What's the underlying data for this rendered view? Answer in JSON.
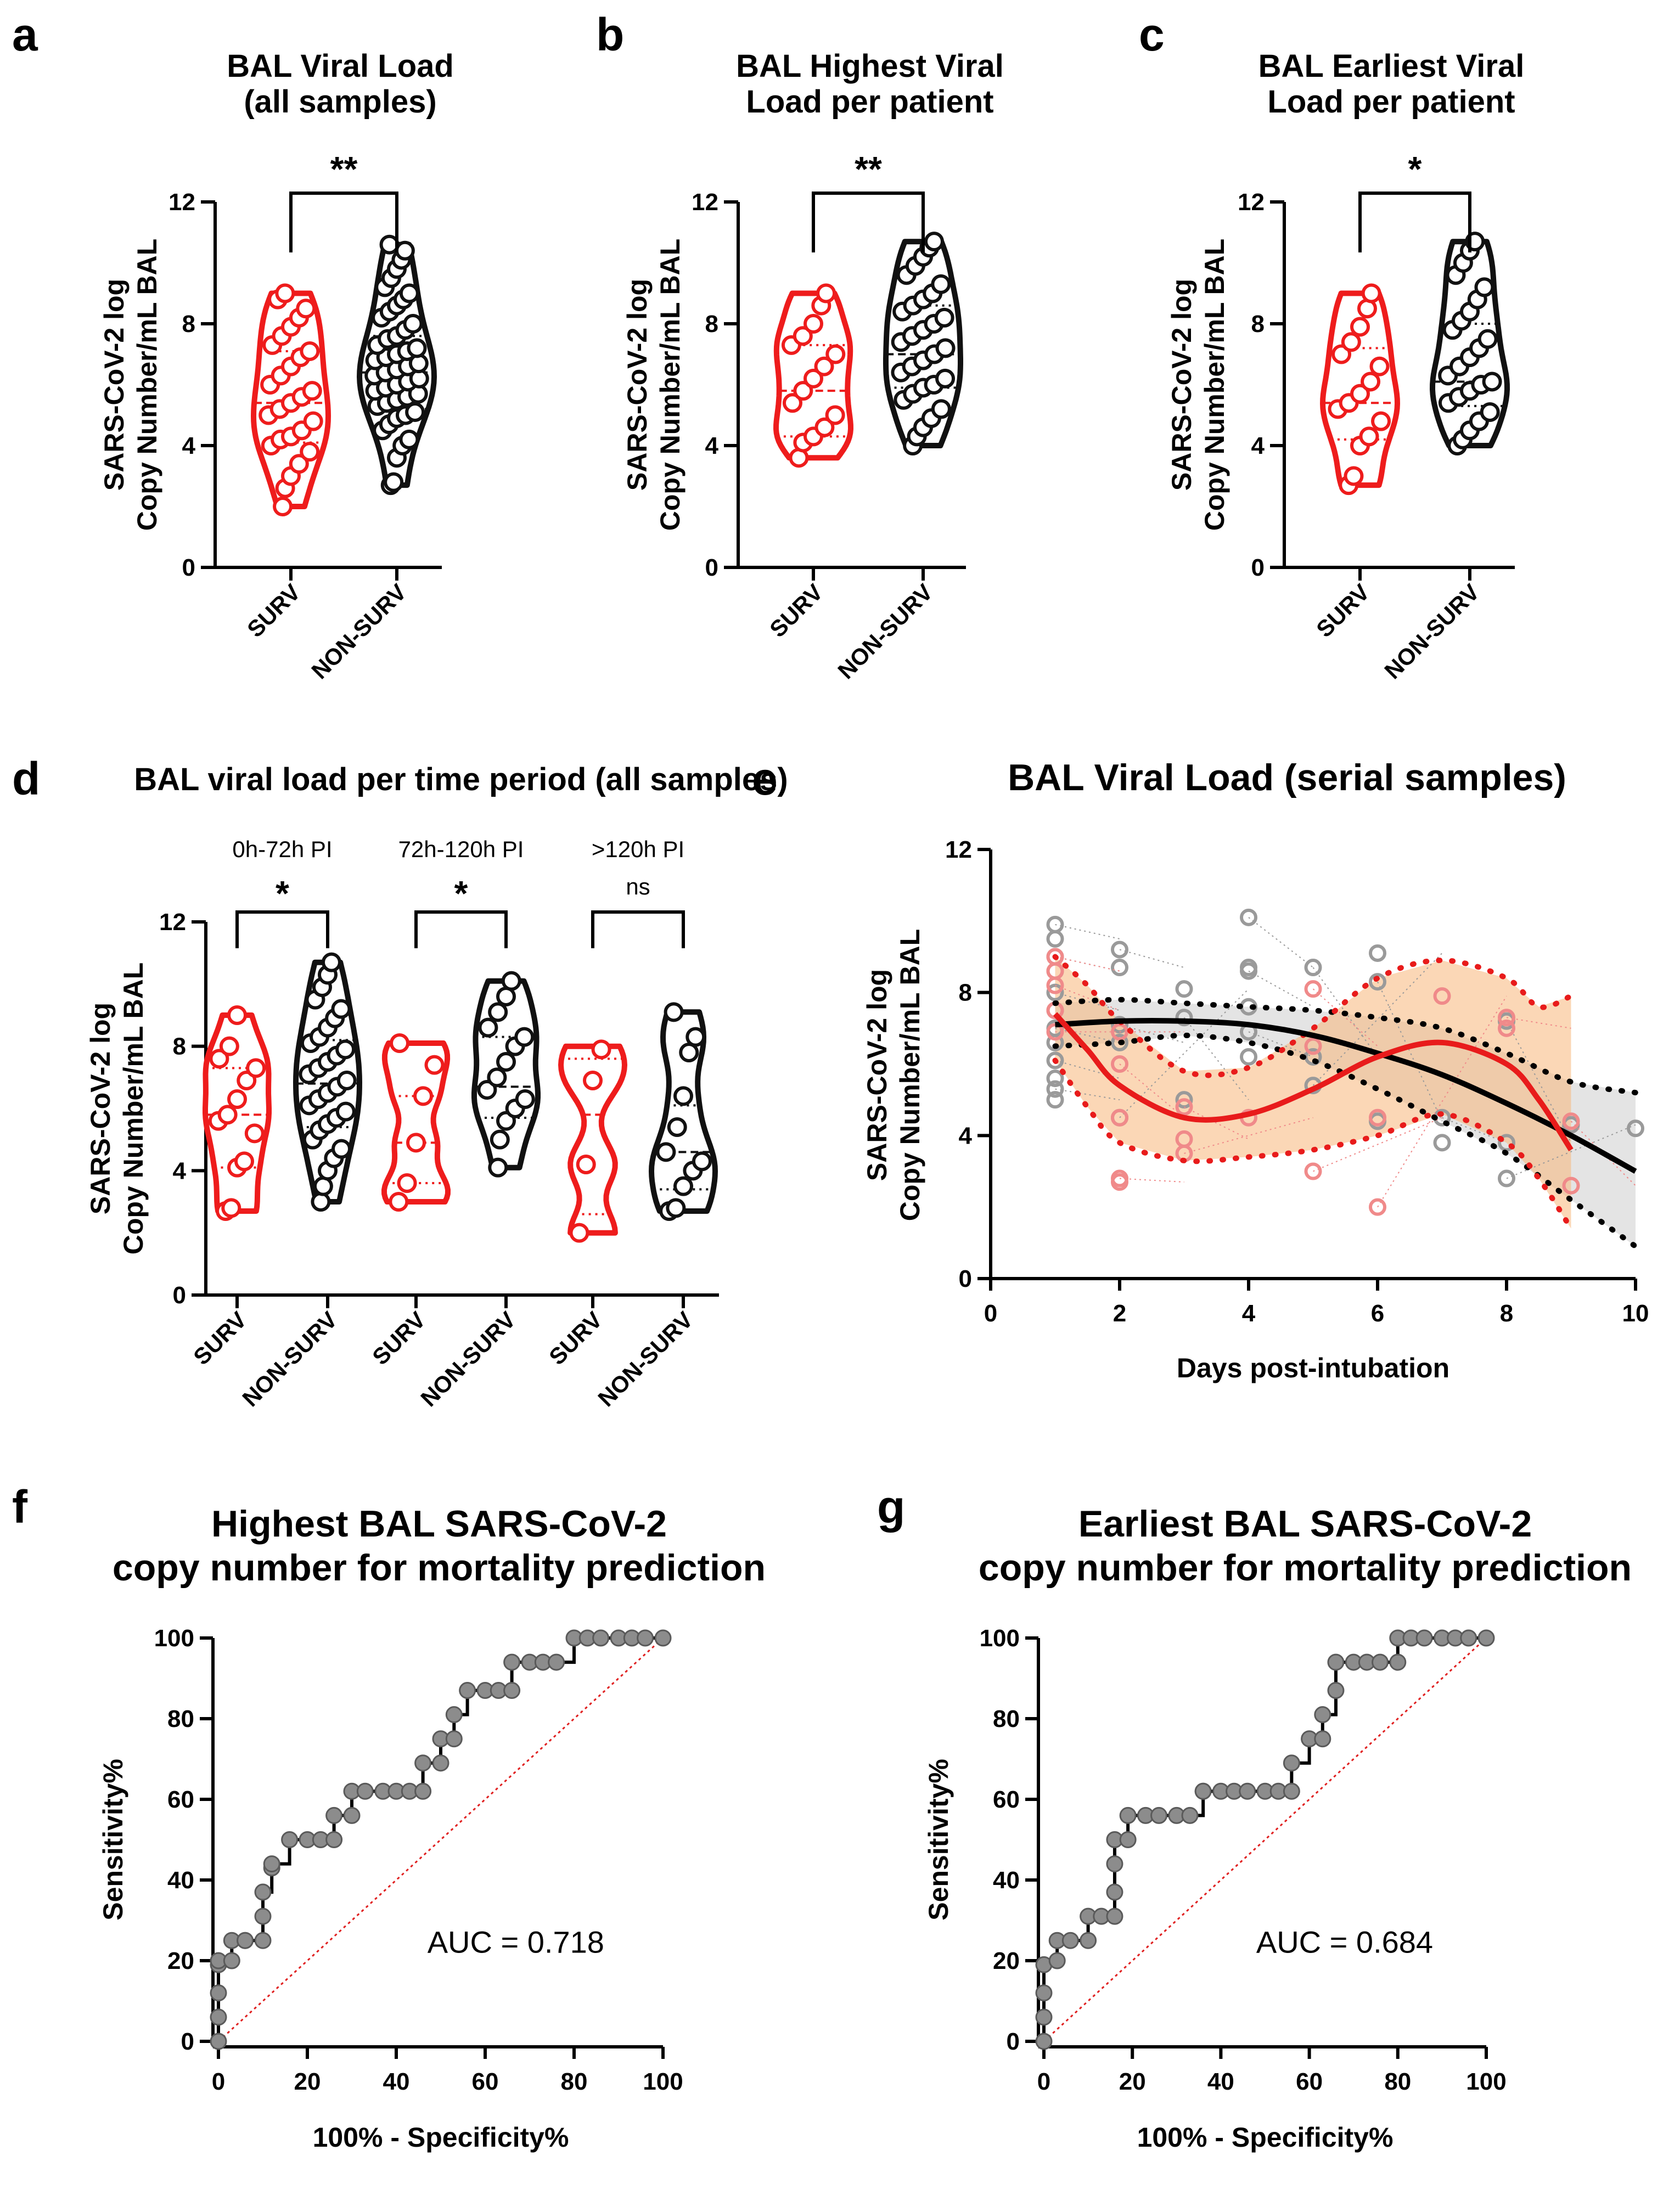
{
  "figure_label": "Violin plots, serial viral load curves and ROC curves of BAL SARS-CoV-2 viral load",
  "chart_data": [
    {
      "id": "a",
      "type": "violin",
      "letter": "a",
      "title_lines": [
        "BAL Viral Load",
        "(all samples)"
      ],
      "ylabel_lines": [
        "SARS-CoV-2 log",
        "Copy Number/mL BAL"
      ],
      "ylim": [
        0,
        12
      ],
      "yticks": [
        "0",
        "4",
        "8",
        "12"
      ],
      "categories": [
        "SURV",
        "NON-SURV"
      ],
      "series": [
        {
          "name": "SURV",
          "color": "#ee1c1c",
          "range": [
            2.0,
            9.0
          ],
          "median": 5.4,
          "q1": 4.1,
          "q3": 7.1,
          "points": [
            2.0,
            2.6,
            3.0,
            3.4,
            3.8,
            4.0,
            4.2,
            4.3,
            4.5,
            4.8,
            5.0,
            5.2,
            5.4,
            5.6,
            5.8,
            6.0,
            6.3,
            6.6,
            6.9,
            7.1,
            7.3,
            7.6,
            7.9,
            8.2,
            8.5,
            8.8,
            9.0
          ]
        },
        {
          "name": "NON-SURV",
          "color": "#111111",
          "range": [
            2.7,
            10.6
          ],
          "median": 6.4,
          "q1": 5.2,
          "q3": 7.6,
          "points": [
            2.7,
            2.8,
            3.6,
            4.0,
            4.2,
            4.5,
            4.7,
            4.9,
            5.0,
            5.1,
            5.3,
            5.4,
            5.5,
            5.6,
            5.7,
            5.8,
            5.9,
            6.0,
            6.1,
            6.2,
            6.3,
            6.4,
            6.5,
            6.6,
            6.7,
            6.8,
            6.9,
            7.0,
            7.1,
            7.2,
            7.3,
            7.5,
            7.6,
            7.8,
            8.0,
            8.2,
            8.4,
            8.6,
            8.8,
            9.0,
            9.2,
            9.5,
            9.8,
            10.1,
            10.4,
            10.6
          ]
        }
      ],
      "comparisons": [
        {
          "from": 0,
          "to": 1,
          "label": "**"
        }
      ]
    },
    {
      "id": "b",
      "type": "violin",
      "letter": "b",
      "title_lines": [
        "BAL Highest Viral",
        "Load per patient"
      ],
      "ylabel_lines": [
        "SARS-CoV-2 log",
        "Copy Number/mL BAL"
      ],
      "ylim": [
        0,
        12
      ],
      "yticks": [
        "0",
        "4",
        "8",
        "12"
      ],
      "categories": [
        "SURV",
        "NON-SURV"
      ],
      "series": [
        {
          "name": "SURV",
          "color": "#ee1c1c",
          "range": [
            3.6,
            9.0
          ],
          "median": 5.8,
          "q1": 4.3,
          "q3": 7.3,
          "points": [
            3.6,
            4.1,
            4.3,
            4.6,
            5.0,
            5.4,
            5.8,
            6.2,
            6.6,
            7.0,
            7.3,
            7.6,
            8.0,
            8.6,
            9.0
          ]
        },
        {
          "name": "NON-SURV",
          "color": "#111111",
          "range": [
            4.0,
            10.7
          ],
          "median": 7.0,
          "q1": 5.9,
          "q3": 8.6,
          "points": [
            4.0,
            4.3,
            4.6,
            4.9,
            5.2,
            5.5,
            5.7,
            5.9,
            6.0,
            6.2,
            6.4,
            6.6,
            6.8,
            7.0,
            7.2,
            7.4,
            7.6,
            7.8,
            8.0,
            8.2,
            8.4,
            8.6,
            8.8,
            9.0,
            9.3,
            9.6,
            9.9,
            10.2,
            10.5,
            10.7
          ]
        }
      ],
      "comparisons": [
        {
          "from": 0,
          "to": 1,
          "label": "**"
        }
      ]
    },
    {
      "id": "c",
      "type": "violin",
      "letter": "c",
      "title_lines": [
        "BAL Earliest Viral",
        "Load per patient"
      ],
      "ylabel_lines": [
        "SARS-CoV-2 log",
        "Copy Number/mL BAL"
      ],
      "ylim": [
        0,
        12
      ],
      "yticks": [
        "0",
        "4",
        "8",
        "12"
      ],
      "categories": [
        "SURV",
        "NON-SURV"
      ],
      "series": [
        {
          "name": "SURV",
          "color": "#ee1c1c",
          "range": [
            2.7,
            9.0
          ],
          "median": 5.4,
          "q1": 4.2,
          "q3": 7.2,
          "points": [
            2.7,
            3.0,
            4.0,
            4.3,
            4.8,
            5.2,
            5.4,
            5.7,
            6.1,
            6.6,
            7.0,
            7.4,
            7.9,
            8.5,
            9.0
          ]
        },
        {
          "name": "NON-SURV",
          "color": "#111111",
          "range": [
            4.0,
            10.7
          ],
          "median": 6.1,
          "q1": 5.3,
          "q3": 8.0,
          "points": [
            4.0,
            4.2,
            4.5,
            4.8,
            5.1,
            5.4,
            5.6,
            5.8,
            6.0,
            6.1,
            6.3,
            6.6,
            6.9,
            7.2,
            7.5,
            7.8,
            8.1,
            8.4,
            8.8,
            9.2,
            9.6,
            10.0,
            10.4,
            10.7
          ]
        }
      ],
      "comparisons": [
        {
          "from": 0,
          "to": 1,
          "label": "*"
        }
      ]
    },
    {
      "id": "d",
      "type": "violin",
      "letter": "d",
      "title_lines": [
        "BAL viral load per time period  (all samples)"
      ],
      "ylabel_lines": [
        "SARS-CoV-2 log",
        "Copy Number/mL BAL"
      ],
      "ylim": [
        0,
        12
      ],
      "yticks": [
        "0",
        "4",
        "8",
        "12"
      ],
      "categories": [
        "SURV",
        "NON-SURV",
        "SURV",
        "NON-SURV",
        "SURV",
        "NON-SURV"
      ],
      "period_labels": [
        "0h-72h PI",
        "72h-120h PI",
        ">120h PI"
      ],
      "series": [
        {
          "name": "SURV 0h-72h",
          "color": "#ee1c1c",
          "range": [
            2.7,
            9.0
          ],
          "median": 5.8,
          "q1": 4.1,
          "q3": 7.3,
          "points": [
            2.7,
            2.8,
            4.1,
            4.3,
            5.2,
            5.6,
            5.8,
            6.3,
            6.9,
            7.3,
            7.6,
            8.0,
            9.0
          ]
        },
        {
          "name": "NON-SURV 0h-72h",
          "color": "#111111",
          "range": [
            3.0,
            10.7
          ],
          "median": 6.8,
          "q1": 5.4,
          "q3": 8.2,
          "points": [
            3.0,
            3.5,
            4.0,
            4.4,
            4.7,
            5.0,
            5.3,
            5.5,
            5.7,
            5.9,
            6.1,
            6.3,
            6.5,
            6.7,
            6.9,
            7.1,
            7.3,
            7.5,
            7.7,
            7.9,
            8.1,
            8.3,
            8.6,
            8.9,
            9.2,
            9.5,
            9.9,
            10.3,
            10.7
          ]
        },
        {
          "name": "SURV 72h-120h",
          "color": "#ee1c1c",
          "range": [
            3.0,
            8.1
          ],
          "median": 4.9,
          "q1": 3.6,
          "q3": 6.4,
          "points": [
            3.0,
            3.6,
            4.9,
            6.4,
            7.4,
            8.1
          ]
        },
        {
          "name": "NON-SURV 72h-120h",
          "color": "#111111",
          "range": [
            4.1,
            10.1
          ],
          "median": 6.7,
          "q1": 5.7,
          "q3": 8.3,
          "points": [
            4.1,
            5.0,
            5.6,
            6.0,
            6.3,
            6.6,
            7.0,
            7.5,
            8.0,
            8.3,
            8.6,
            9.1,
            9.6,
            10.1
          ]
        },
        {
          "name": "SURV >120h",
          "color": "#ee1c1c",
          "range": [
            2.0,
            8.0
          ],
          "median": 5.8,
          "q1": 2.6,
          "q3": 7.6,
          "points": [
            2.0,
            4.2,
            6.9,
            7.9
          ]
        },
        {
          "name": "NON-SURV >120h",
          "color": "#111111",
          "range": [
            2.7,
            9.1
          ],
          "median": 4.6,
          "q1": 3.4,
          "q3": 6.1,
          "points": [
            2.7,
            2.8,
            3.5,
            4.0,
            4.3,
            4.6,
            5.4,
            6.4,
            7.8,
            8.3,
            9.1
          ]
        }
      ],
      "comparisons": [
        {
          "from": 0,
          "to": 1,
          "label": "*"
        },
        {
          "from": 2,
          "to": 3,
          "label": "*"
        },
        {
          "from": 4,
          "to": 5,
          "label": "ns"
        }
      ]
    },
    {
      "id": "e",
      "type": "line",
      "letter": "e",
      "title": "BAL Viral Load (serial samples)",
      "ylabel_lines": [
        "SARS-CoV-2 log",
        "Copy Number/mL BAL"
      ],
      "xlabel": "Days post-intubation",
      "xlim": [
        0,
        10
      ],
      "ylim": [
        0,
        12
      ],
      "xticks": [
        "0",
        "2",
        "4",
        "6",
        "8",
        "10"
      ],
      "yticks": [
        "0",
        "4",
        "8",
        "12"
      ],
      "series": [
        {
          "name": "NON-SURV fit",
          "color": "#000000",
          "x": [
            1,
            2,
            3,
            4,
            5,
            6,
            7,
            8,
            9,
            10
          ],
          "y": [
            7.1,
            7.2,
            7.2,
            7.1,
            6.8,
            6.3,
            5.7,
            4.9,
            4.0,
            3.0
          ],
          "ci_lower": [
            6.5,
            6.6,
            6.8,
            6.6,
            6.1,
            5.3,
            4.4,
            3.5,
            2.2,
            0.9
          ],
          "ci_upper": [
            7.7,
            7.8,
            7.7,
            7.6,
            7.5,
            7.3,
            7.0,
            6.3,
            5.5,
            5.2
          ]
        },
        {
          "name": "SURV fit",
          "color": "#e81b1b",
          "x": [
            1,
            1.5,
            2,
            3,
            4,
            5,
            6,
            7,
            8,
            8.5,
            9
          ],
          "y": [
            7.4,
            6.4,
            5.4,
            4.5,
            4.6,
            5.3,
            6.2,
            6.6,
            6.0,
            5.0,
            3.6
          ],
          "ci_lower": [
            6.1,
            4.8,
            3.8,
            3.3,
            3.4,
            3.6,
            4.0,
            4.6,
            3.8,
            2.8,
            1.4
          ],
          "ci_upper": [
            9.0,
            8.2,
            7.2,
            5.8,
            5.9,
            7.0,
            8.4,
            8.9,
            8.4,
            7.6,
            7.9
          ]
        }
      ],
      "individual_points": {
        "NON-SURV": [
          [
            1,
            9.9
          ],
          [
            1,
            9.5
          ],
          [
            1,
            9.0
          ],
          [
            1,
            8.6
          ],
          [
            1,
            8.0
          ],
          [
            1,
            7.5
          ],
          [
            1,
            7.0
          ],
          [
            1,
            6.6
          ],
          [
            1,
            6.1
          ],
          [
            1,
            5.6
          ],
          [
            1,
            5.3
          ],
          [
            1,
            5.0
          ],
          [
            2,
            9.2
          ],
          [
            2,
            8.7
          ],
          [
            2,
            7.1
          ],
          [
            2,
            6.6
          ],
          [
            2,
            4.5
          ],
          [
            3,
            8.1
          ],
          [
            3,
            7.3
          ],
          [
            3,
            5.0
          ],
          [
            4,
            10.1
          ],
          [
            4,
            8.7
          ],
          [
            4,
            8.6
          ],
          [
            4,
            7.6
          ],
          [
            4,
            6.9
          ],
          [
            4,
            6.2
          ],
          [
            5,
            8.7
          ],
          [
            5,
            6.2
          ],
          [
            5,
            5.4
          ],
          [
            6,
            9.1
          ],
          [
            6,
            8.3
          ],
          [
            6,
            4.4
          ],
          [
            7,
            4.5
          ],
          [
            7,
            3.8
          ],
          [
            8,
            7.2
          ],
          [
            8,
            3.8
          ],
          [
            8,
            2.8
          ],
          [
            9,
            4.3
          ],
          [
            10,
            4.2
          ]
        ],
        "SURV": [
          [
            1,
            9.0
          ],
          [
            1,
            8.6
          ],
          [
            1,
            8.2
          ],
          [
            1,
            7.5
          ],
          [
            1,
            6.9
          ],
          [
            2,
            6.9
          ],
          [
            2,
            6.0
          ],
          [
            2,
            4.5
          ],
          [
            2,
            2.8
          ],
          [
            2,
            2.7
          ],
          [
            3,
            4.8
          ],
          [
            3,
            3.9
          ],
          [
            3,
            3.5
          ],
          [
            4,
            4.5
          ],
          [
            5,
            8.1
          ],
          [
            5,
            6.5
          ],
          [
            5,
            3.0
          ],
          [
            6,
            4.5
          ],
          [
            6,
            2.0
          ],
          [
            7,
            7.9
          ],
          [
            8,
            7.3
          ],
          [
            8,
            7.0
          ],
          [
            9,
            4.4
          ],
          [
            9,
            2.6
          ]
        ]
      }
    },
    {
      "id": "f",
      "type": "line",
      "letter": "f",
      "title_lines": [
        "Highest BAL SARS-CoV-2",
        "copy number for mortality prediction"
      ],
      "xlabel": "100% - Specificity%",
      "ylabel": "Sensitivity%",
      "xlim": [
        0,
        100
      ],
      "ylim": [
        0,
        100
      ],
      "xticks": [
        "0",
        "20",
        "40",
        "60",
        "80",
        "100"
      ],
      "yticks": [
        "0",
        "20",
        "40",
        "60",
        "80",
        "100"
      ],
      "annotation": "AUC = 0.718",
      "auc": 0.718,
      "roc_x": [
        0,
        0,
        0,
        0,
        0,
        3,
        3,
        6,
        6,
        10,
        10,
        10,
        12,
        12,
        16,
        20,
        23,
        26,
        26,
        30,
        30,
        33,
        37,
        40,
        43,
        46,
        46,
        50,
        50,
        53,
        53,
        56,
        60,
        63,
        66,
        66,
        70,
        73,
        76,
        80,
        83,
        86,
        90,
        93,
        96,
        100
      ],
      "roc_y": [
        0,
        6,
        12,
        19,
        20,
        20,
        25,
        25,
        25,
        25,
        31,
        37,
        43,
        44,
        50,
        50,
        50,
        50,
        56,
        56,
        62,
        62,
        62,
        62,
        62,
        62,
        69,
        69,
        75,
        75,
        81,
        87,
        87,
        87,
        87,
        94,
        94,
        94,
        94,
        100,
        100,
        100,
        100,
        100,
        100,
        100
      ]
    },
    {
      "id": "g",
      "type": "line",
      "letter": "g",
      "title_lines": [
        "Earliest BAL SARS-CoV-2",
        "copy number for mortality prediction"
      ],
      "xlabel": "100% - Specificity%",
      "ylabel": "Sensitivity%",
      "xlim": [
        0,
        100
      ],
      "ylim": [
        0,
        100
      ],
      "xticks": [
        "0",
        "20",
        "40",
        "60",
        "80",
        "100"
      ],
      "yticks": [
        "0",
        "20",
        "40",
        "60",
        "80",
        "100"
      ],
      "annotation": "AUC = 0.684",
      "auc": 0.684,
      "roc_x": [
        0,
        0,
        0,
        0,
        3,
        3,
        6,
        10,
        10,
        13,
        16,
        16,
        16,
        16,
        19,
        19,
        23,
        26,
        30,
        33,
        36,
        36,
        40,
        43,
        46,
        50,
        53,
        56,
        56,
        60,
        63,
        63,
        66,
        66,
        70,
        73,
        76,
        80,
        80,
        83,
        86,
        90,
        93,
        96,
        100
      ],
      "roc_y": [
        0,
        6,
        12,
        19,
        20,
        25,
        25,
        25,
        31,
        31,
        31,
        37,
        44,
        50,
        50,
        56,
        56,
        56,
        56,
        56,
        62,
        62,
        62,
        62,
        62,
        62,
        62,
        62,
        69,
        75,
        75,
        81,
        87,
        94,
        94,
        94,
        94,
        94,
        100,
        100,
        100,
        100,
        100,
        100,
        100
      ]
    }
  ]
}
